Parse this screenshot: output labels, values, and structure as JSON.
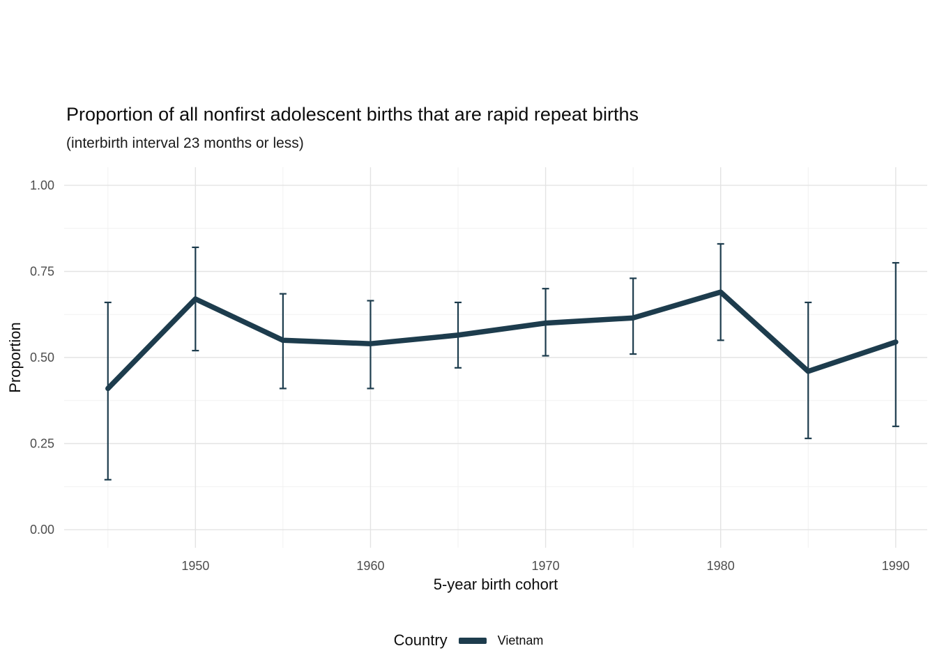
{
  "chart_data": {
    "type": "line",
    "title": "Proportion of all nonfirst adolescent births that are rapid repeat births",
    "subtitle": "(interbirth interval 23 months or less)",
    "xlabel": "5-year birth cohort",
    "ylabel": "Proportion",
    "xlim": [
      1942.5,
      1991.8
    ],
    "ylim_display": [
      -0.0526,
      1.0526
    ],
    "yticks": [
      0.0,
      0.25,
      0.5,
      0.75,
      1.0
    ],
    "ytick_labels": [
      "0.00",
      "0.25",
      "0.50",
      "0.75",
      "1.00"
    ],
    "xticks": [
      1950,
      1960,
      1970,
      1980,
      1990
    ],
    "xtick_labels": [
      "1950",
      "1960",
      "1970",
      "1980",
      "1990"
    ],
    "minor_yticks": [
      0.125,
      0.375,
      0.625,
      0.875
    ],
    "minor_xticks": [
      1945,
      1955,
      1965,
      1975,
      1985
    ],
    "grid": true,
    "colors": {
      "line": "#1d3c4d",
      "major_grid": "#e3e3e3",
      "minor_grid": "#f1f1f1",
      "tick_text": "#4d4d4d"
    },
    "legend": {
      "title": "Country",
      "position": "bottom",
      "entries": [
        {
          "label": "Vietnam",
          "color": "#1d3c4d"
        }
      ]
    },
    "series": [
      {
        "name": "Vietnam",
        "x": [
          1945,
          1950,
          1955,
          1960,
          1965,
          1970,
          1975,
          1980,
          1985,
          1990
        ],
        "y": [
          0.41,
          0.67,
          0.55,
          0.54,
          0.565,
          0.6,
          0.615,
          0.69,
          0.46,
          0.545
        ],
        "ymin": [
          0.145,
          0.52,
          0.41,
          0.41,
          0.47,
          0.505,
          0.51,
          0.55,
          0.265,
          0.3
        ],
        "ymax": [
          0.66,
          0.82,
          0.685,
          0.665,
          0.66,
          0.7,
          0.73,
          0.83,
          0.66,
          0.775
        ]
      }
    ]
  }
}
